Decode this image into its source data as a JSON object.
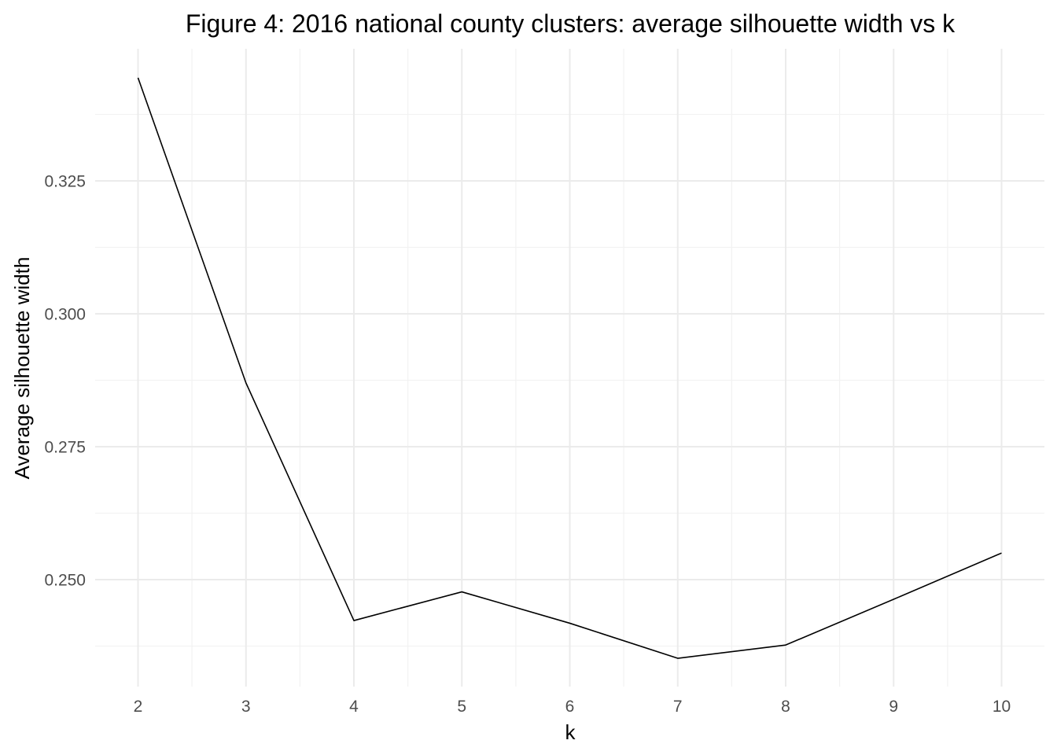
{
  "chart_data": {
    "type": "line",
    "title": "Figure 4: 2016 national county clusters: average silhouette width vs k",
    "xlabel": "k",
    "ylabel": "Average silhouette width",
    "x": [
      2,
      3,
      4,
      5,
      6,
      7,
      8,
      9,
      10
    ],
    "x_tick_labels": [
      "2",
      "3",
      "4",
      "5",
      "6",
      "7",
      "8",
      "9",
      "10"
    ],
    "y_tick_values": [
      0.25,
      0.275,
      0.3,
      0.325
    ],
    "y_tick_labels": [
      "0.250",
      "0.275",
      "0.300",
      "0.325"
    ],
    "series": [
      {
        "values": [
          0.3444,
          0.287,
          0.2423,
          0.2477,
          0.2418,
          0.2352,
          0.2377,
          0.2463,
          0.255
        ],
        "color": "#000000"
      }
    ],
    "xlim": [
      1.8,
      10.4
    ],
    "ylim": [
      0.231,
      0.3488
    ],
    "grid": true,
    "legend": "none"
  }
}
